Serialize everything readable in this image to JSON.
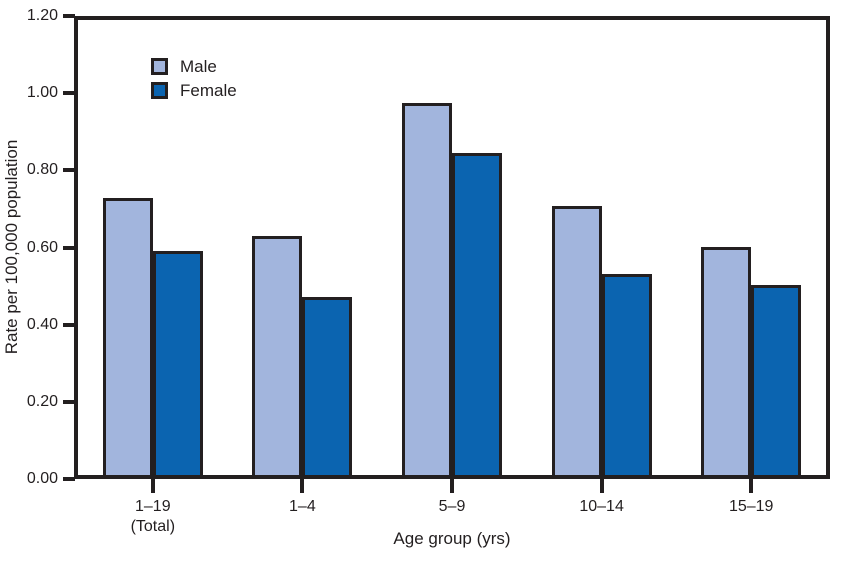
{
  "chart_data": {
    "type": "bar",
    "title": "",
    "xlabel": "Age group (yrs)",
    "ylabel": "Rate per 100,000 population",
    "ylim": [
      0,
      1.2
    ],
    "yticks": [
      "0.00",
      "0.20",
      "0.40",
      "0.60",
      "0.80",
      "1.00",
      "1.20"
    ],
    "grid": false,
    "legend_position": "upper-left-inside",
    "categories": [
      {
        "lines": [
          "1–19",
          "(Total)"
        ]
      },
      {
        "lines": [
          "1–4"
        ]
      },
      {
        "lines": [
          "5–9"
        ]
      },
      {
        "lines": [
          "10–14"
        ]
      },
      {
        "lines": [
          "15–19"
        ]
      }
    ],
    "series": [
      {
        "name": "Male",
        "color": "#a2b5dd",
        "values": [
          0.73,
          0.63,
          0.98,
          0.71,
          0.6
        ]
      },
      {
        "name": "Female",
        "color": "#0b64b0",
        "values": [
          0.59,
          0.47,
          0.85,
          0.53,
          0.5
        ]
      }
    ],
    "colors": {
      "frame": "#231f20",
      "bar_border": "#231f20",
      "text": "#231f20",
      "background": "#ffffff"
    }
  }
}
